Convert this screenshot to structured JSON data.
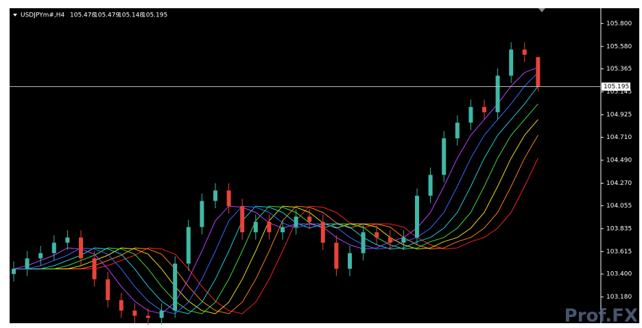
{
  "chart_data": {
    "type": "candlestick",
    "symbol": "USDJPYm#,H4",
    "watermark": "Prof.FX",
    "up_color": "#3fb8a6",
    "down_color": "#e8433a",
    "open": [
      103.4,
      103.45,
      103.55,
      103.6,
      103.7,
      103.75,
      103.55,
      103.35,
      103.15,
      103.05,
      103.0,
      102.98,
      103.05,
      103.5,
      103.85,
      104.1,
      104.2,
      104.05,
      103.8,
      103.9,
      103.8,
      103.85,
      103.95,
      103.9,
      103.7,
      103.45,
      103.6,
      103.8,
      103.75,
      103.7,
      103.75,
      104.15,
      104.35,
      104.7,
      104.85,
      105.0,
      104.95,
      105.3,
      105.55,
      105.478
    ],
    "high": [
      103.52,
      103.62,
      103.67,
      103.77,
      103.82,
      103.82,
      103.62,
      103.42,
      103.22,
      103.12,
      103.07,
      103.12,
      103.57,
      103.92,
      104.17,
      104.27,
      104.27,
      104.12,
      103.97,
      103.97,
      103.92,
      104.02,
      104.02,
      103.97,
      103.77,
      103.67,
      103.87,
      103.87,
      103.82,
      103.82,
      104.22,
      104.42,
      104.77,
      104.92,
      105.07,
      105.07,
      105.37,
      105.62,
      105.62,
      105.479
    ],
    "low": [
      103.33,
      103.38,
      103.48,
      103.53,
      103.63,
      103.48,
      103.28,
      103.08,
      102.98,
      102.93,
      102.91,
      102.91,
      102.98,
      103.43,
      103.78,
      104.03,
      103.98,
      103.73,
      103.73,
      103.73,
      103.73,
      103.78,
      103.83,
      103.63,
      103.38,
      103.38,
      103.53,
      103.68,
      103.63,
      103.63,
      103.68,
      104.08,
      104.28,
      104.63,
      104.78,
      104.88,
      104.88,
      105.23,
      105.43,
      105.148
    ],
    "close": [
      103.45,
      103.55,
      103.6,
      103.7,
      103.75,
      103.55,
      103.35,
      103.15,
      103.05,
      103.0,
      102.98,
      103.05,
      103.5,
      103.85,
      104.1,
      104.2,
      104.05,
      103.8,
      103.9,
      103.8,
      103.85,
      103.95,
      103.9,
      103.7,
      103.45,
      103.6,
      103.8,
      103.75,
      103.7,
      103.75,
      104.15,
      104.35,
      104.7,
      104.85,
      105.0,
      104.95,
      105.3,
      105.55,
      105.5,
      105.195
    ],
    "series": [
      {
        "color": "#c040ff",
        "values": [
          103.45,
          103.48,
          103.53,
          103.58,
          103.65,
          103.64,
          103.59,
          103.45,
          103.28,
          103.14,
          103.05,
          103.02,
          103.13,
          103.35,
          103.62,
          103.91,
          104.05,
          104.04,
          103.99,
          103.89,
          103.84,
          103.88,
          103.88,
          103.85,
          103.75,
          103.68,
          103.64,
          103.65,
          103.71,
          103.75,
          103.84,
          103.99,
          104.24,
          104.51,
          104.73,
          104.88,
          105.03,
          105.2,
          105.33,
          105.38
        ]
      },
      {
        "color": "#3a6bff",
        "values": [
          103.45,
          103.45,
          103.48,
          103.53,
          103.58,
          103.65,
          103.64,
          103.59,
          103.45,
          103.28,
          103.14,
          103.05,
          103.02,
          103.13,
          103.35,
          103.62,
          103.91,
          104.05,
          104.04,
          103.99,
          103.89,
          103.84,
          103.88,
          103.88,
          103.85,
          103.75,
          103.68,
          103.64,
          103.65,
          103.71,
          103.75,
          103.84,
          103.99,
          104.24,
          104.51,
          104.73,
          104.88,
          105.03,
          105.2,
          105.33
        ]
      },
      {
        "color": "#20d0e0",
        "values": [
          103.45,
          103.45,
          103.45,
          103.48,
          103.53,
          103.58,
          103.65,
          103.64,
          103.59,
          103.45,
          103.28,
          103.14,
          103.05,
          103.02,
          103.13,
          103.35,
          103.62,
          103.91,
          104.05,
          104.04,
          103.99,
          103.89,
          103.84,
          103.88,
          103.88,
          103.85,
          103.75,
          103.68,
          103.64,
          103.65,
          103.71,
          103.75,
          103.84,
          103.99,
          104.24,
          104.51,
          104.73,
          104.88,
          105.03,
          105.2
        ]
      },
      {
        "color": "#40e040",
        "values": [
          103.45,
          103.45,
          103.45,
          103.45,
          103.48,
          103.53,
          103.58,
          103.65,
          103.64,
          103.59,
          103.45,
          103.28,
          103.14,
          103.05,
          103.02,
          103.13,
          103.35,
          103.62,
          103.91,
          104.05,
          104.04,
          103.99,
          103.89,
          103.84,
          103.88,
          103.88,
          103.85,
          103.75,
          103.68,
          103.64,
          103.65,
          103.71,
          103.75,
          103.84,
          103.99,
          104.24,
          104.51,
          104.73,
          104.88,
          105.03
        ]
      },
      {
        "color": "#f0e020",
        "values": [
          103.45,
          103.45,
          103.45,
          103.45,
          103.45,
          103.48,
          103.53,
          103.58,
          103.65,
          103.64,
          103.59,
          103.45,
          103.28,
          103.14,
          103.05,
          103.02,
          103.13,
          103.35,
          103.62,
          103.91,
          104.05,
          104.04,
          103.99,
          103.89,
          103.84,
          103.88,
          103.88,
          103.85,
          103.75,
          103.68,
          103.64,
          103.65,
          103.71,
          103.75,
          103.84,
          103.99,
          104.24,
          104.51,
          104.73,
          104.88
        ]
      },
      {
        "color": "#ff8020",
        "values": [
          103.45,
          103.45,
          103.45,
          103.45,
          103.45,
          103.45,
          103.48,
          103.53,
          103.58,
          103.65,
          103.64,
          103.59,
          103.45,
          103.28,
          103.14,
          103.05,
          103.02,
          103.13,
          103.35,
          103.62,
          103.91,
          104.05,
          104.04,
          103.99,
          103.89,
          103.84,
          103.88,
          103.88,
          103.85,
          103.75,
          103.68,
          103.64,
          103.65,
          103.71,
          103.75,
          103.84,
          103.99,
          104.24,
          104.51,
          104.73
        ]
      },
      {
        "color": "#ff2020",
        "values": [
          103.45,
          103.45,
          103.45,
          103.45,
          103.45,
          103.45,
          103.45,
          103.48,
          103.53,
          103.58,
          103.65,
          103.64,
          103.59,
          103.45,
          103.28,
          103.14,
          103.05,
          103.02,
          103.13,
          103.35,
          103.62,
          103.91,
          104.05,
          104.04,
          103.99,
          103.89,
          103.84,
          103.88,
          103.88,
          103.85,
          103.75,
          103.68,
          103.64,
          103.65,
          103.71,
          103.75,
          103.84,
          103.99,
          104.24,
          104.51
        ]
      }
    ],
    "current_price": 105.195,
    "ylim": [
      102.929,
      105.946
    ],
    "yticks": [
      {
        "value": 105.8,
        "label": "105.800"
      },
      {
        "value": 105.58,
        "label": "105.580"
      },
      105.365,
      105.145,
      104.925,
      {
        "value": 104.71,
        "label": "104.710"
      },
      {
        "value": 104.49,
        "label": "104.490"
      },
      {
        "value": 104.27,
        "label": "104.270"
      },
      104.055,
      103.835,
      103.615,
      {
        "value": 103.4,
        "label": "103.400"
      },
      {
        "value": 103.18,
        "label": "103.180"
      }
    ]
  }
}
